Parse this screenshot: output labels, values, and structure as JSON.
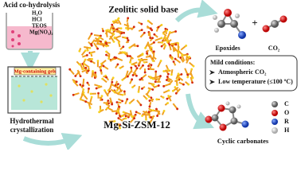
{
  "left": {
    "title": "Acid co-hydrolysis",
    "reagents": [
      "H₂O",
      "HCl",
      "TEOS",
      "Mg(NO₃)₂"
    ],
    "gel_label": "Mg-containing gels",
    "step": [
      "Hydrothermal",
      "crystallization"
    ]
  },
  "center": {
    "title": "Zeolitic solid base",
    "material": "Mg-Si-ZSM-12"
  },
  "right": {
    "reactants": [
      "Epoxides",
      "CO₂"
    ],
    "plus": "+",
    "conditions": {
      "title": "Mild conditions:",
      "items": [
        "Atmospheric CO₂",
        "Low temperature (≤100 ºC)"
      ]
    },
    "product": "Cyclic carbonates",
    "legend": [
      "C",
      "O",
      "R",
      "H"
    ]
  }
}
